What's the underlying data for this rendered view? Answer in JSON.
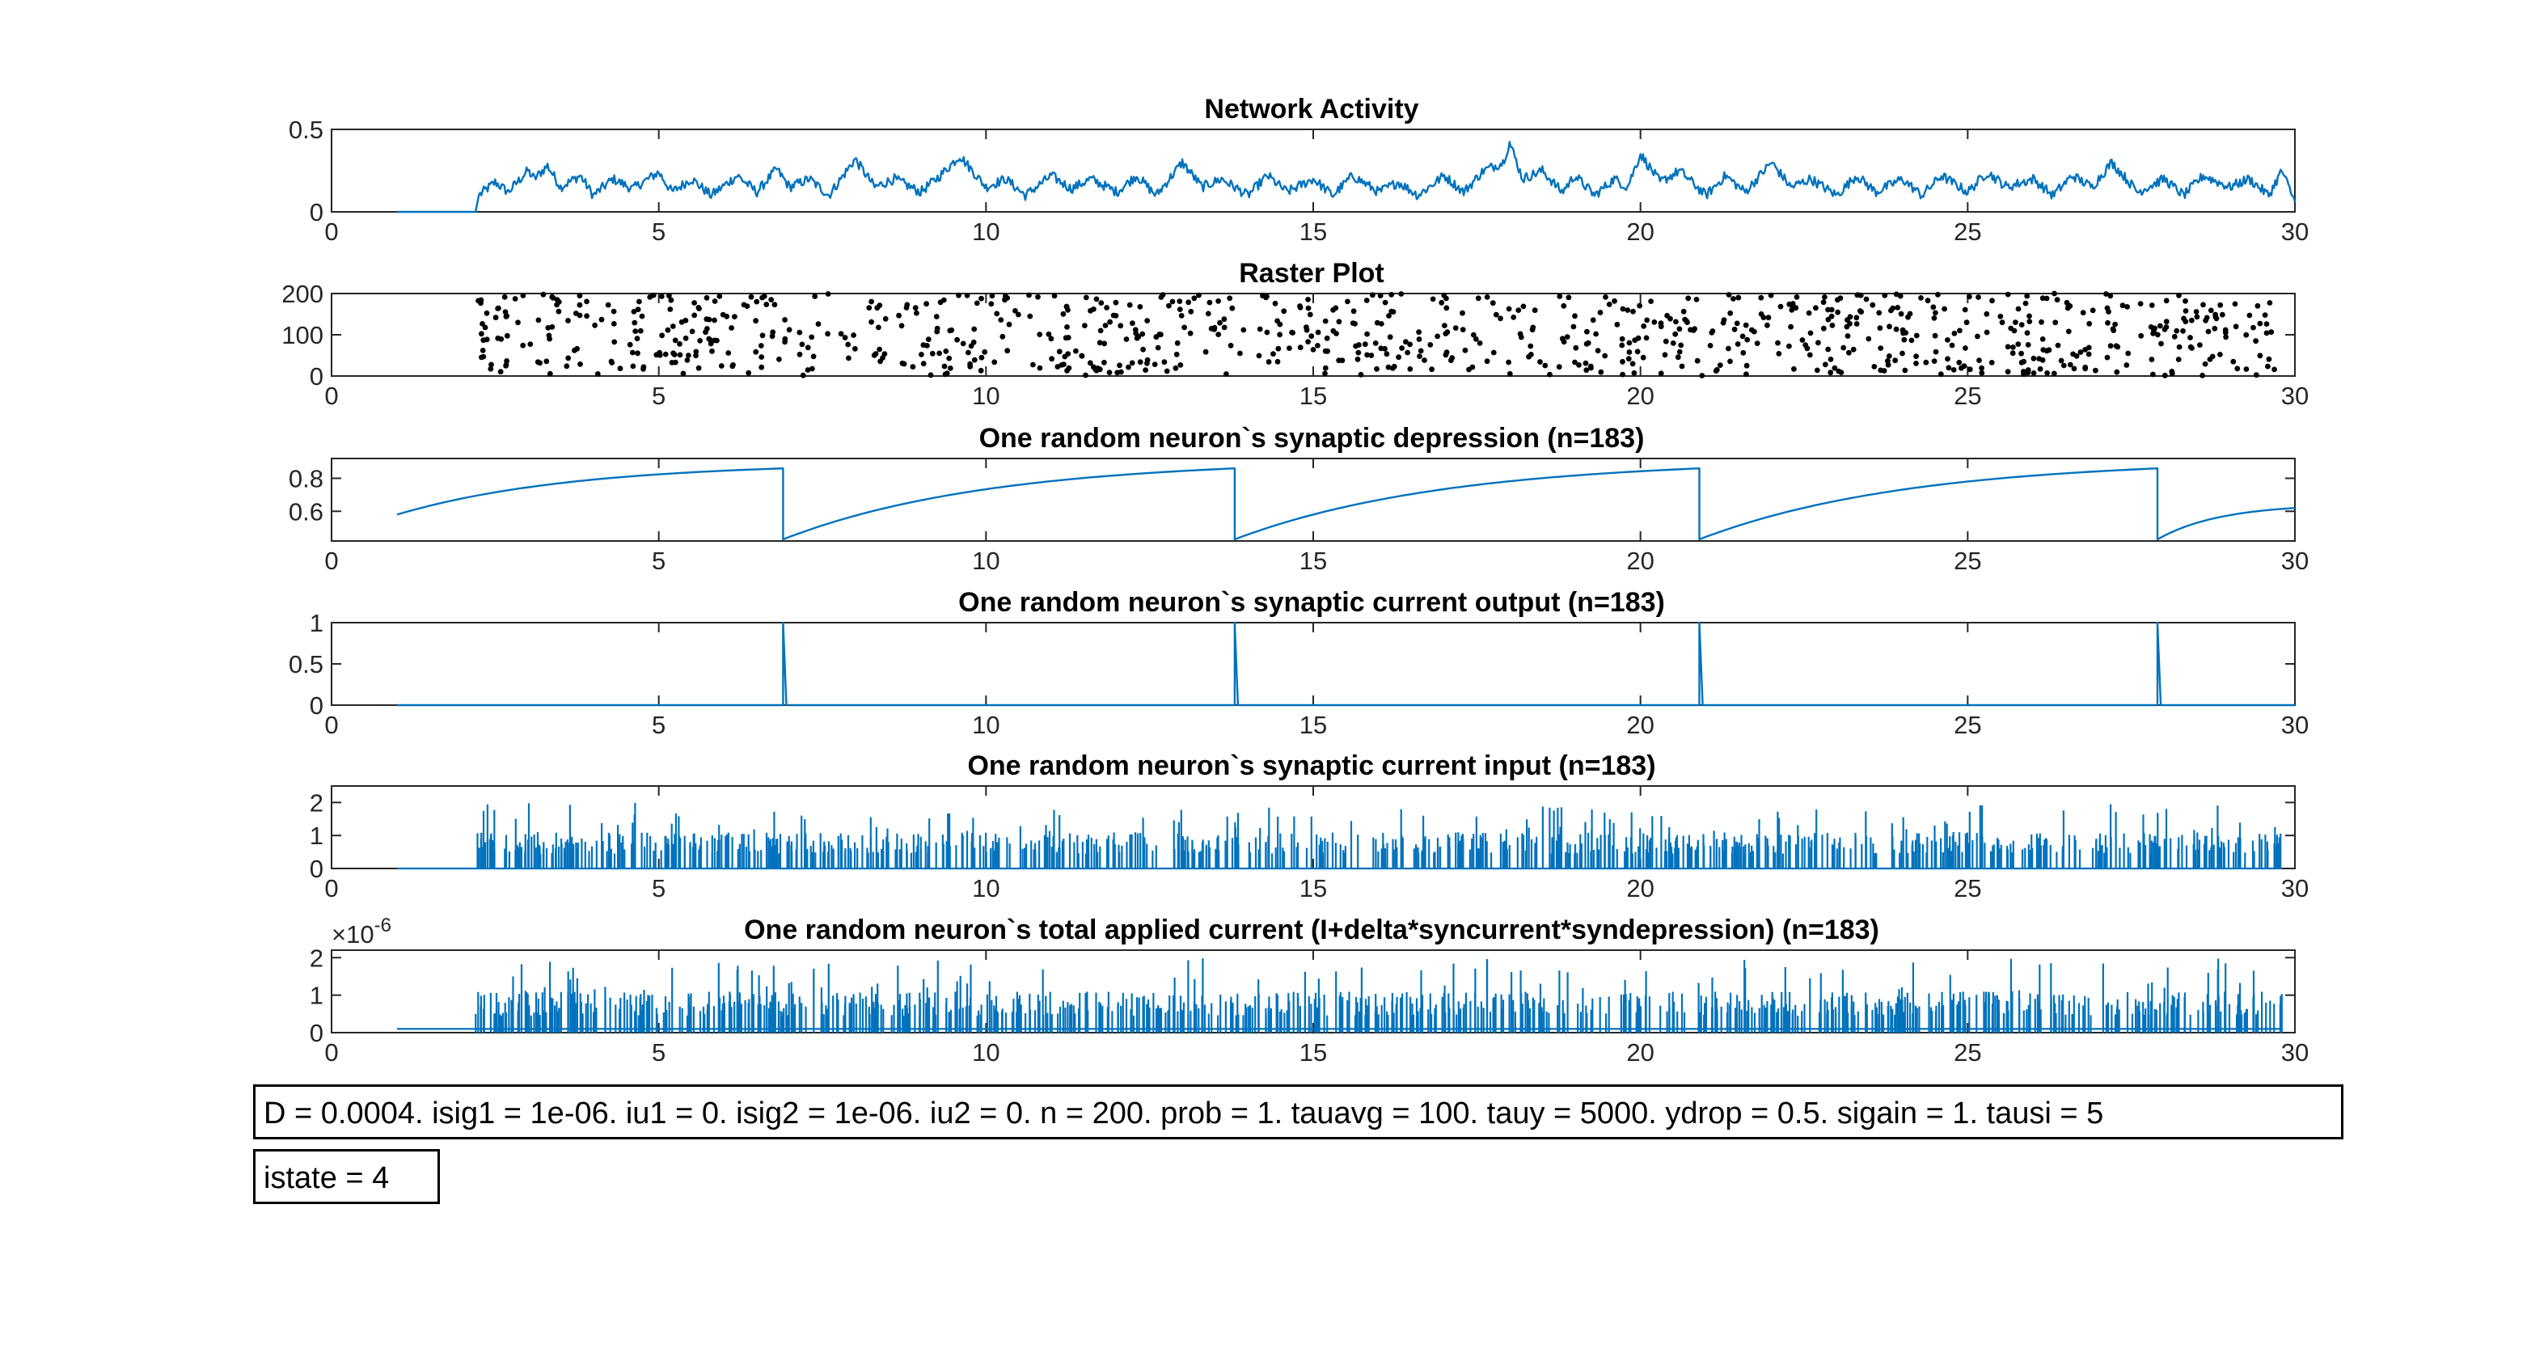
{
  "figure": {
    "params_text": "D = 0.0004. isig1 = 1e-06. iu1 = 0. isig2 = 1e-06. iu2 = 0. n = 200. prob = 1. tauavg = 100. tauy = 5000. ydrop = 0.5. sigain = 1. tausi = 5",
    "state_text": "istate = 4"
  },
  "colors": {
    "series": "#0072BD",
    "raster": "#000000",
    "axes": "#262626"
  },
  "chart_data": [
    {
      "type": "line",
      "title": "Network Activity",
      "xlabel": "",
      "ylabel": "",
      "xlim": [
        0,
        30
      ],
      "ylim": [
        0,
        0.5
      ],
      "xticks": [
        0,
        5,
        10,
        15,
        20,
        25,
        30
      ],
      "yticks": [
        0,
        0.5
      ],
      "ytick_labels": [
        "0",
        "0.5"
      ],
      "series": [
        {
          "x": [
            1.0,
            2.2,
            2.25,
            2.5,
            2.7,
            3.0,
            3.1,
            3.3,
            3.5,
            3.8,
            4.0,
            4.3,
            4.6,
            5.0,
            5.2,
            5.5,
            5.8,
            6.2,
            6.5,
            6.8,
            7.0,
            7.3,
            7.6,
            8.0,
            8.3,
            8.6,
            9.0,
            9.3,
            9.6,
            10.0,
            10.3,
            10.6,
            11.0,
            11.3,
            11.6,
            12.0,
            12.3,
            12.6,
            13.0,
            13.3,
            13.6,
            14.0,
            14.3,
            14.6,
            15.0,
            15.3,
            15.6,
            16.0,
            16.3,
            16.6,
            17.0,
            17.3,
            17.6,
            17.9,
            18.0,
            18.2,
            18.5,
            18.8,
            19.0,
            19.3,
            19.6,
            19.8,
            20.0,
            20.3,
            20.6,
            21.0,
            21.3,
            21.6,
            22.0,
            22.3,
            22.6,
            23.0,
            23.3,
            23.6,
            24.0,
            24.3,
            24.6,
            25.0,
            25.3,
            25.6,
            26.0,
            26.3,
            26.6,
            26.9,
            27.2,
            27.6,
            28.0,
            28.3,
            28.6,
            29.0,
            29.3,
            29.6,
            29.8,
            30.0
          ],
          "y": [
            0.0,
            0.0,
            0.1,
            0.18,
            0.12,
            0.25,
            0.2,
            0.28,
            0.15,
            0.22,
            0.1,
            0.2,
            0.14,
            0.24,
            0.12,
            0.2,
            0.1,
            0.22,
            0.12,
            0.26,
            0.15,
            0.2,
            0.1,
            0.32,
            0.15,
            0.2,
            0.12,
            0.22,
            0.34,
            0.15,
            0.2,
            0.1,
            0.22,
            0.14,
            0.2,
            0.12,
            0.22,
            0.1,
            0.3,
            0.15,
            0.2,
            0.1,
            0.22,
            0.12,
            0.2,
            0.1,
            0.22,
            0.12,
            0.18,
            0.1,
            0.22,
            0.12,
            0.25,
            0.3,
            0.42,
            0.2,
            0.25,
            0.12,
            0.22,
            0.1,
            0.2,
            0.15,
            0.35,
            0.18,
            0.25,
            0.1,
            0.22,
            0.12,
            0.3,
            0.15,
            0.2,
            0.1,
            0.22,
            0.12,
            0.2,
            0.1,
            0.22,
            0.12,
            0.24,
            0.15,
            0.2,
            0.1,
            0.22,
            0.15,
            0.3,
            0.12,
            0.2,
            0.1,
            0.22,
            0.15,
            0.2,
            0.1,
            0.25,
            0.06
          ]
        }
      ]
    },
    {
      "type": "scatter",
      "title": "Raster Plot",
      "xlabel": "",
      "ylabel": "",
      "xlim": [
        0,
        30
      ],
      "ylim": [
        0,
        200
      ],
      "xticks": [
        0,
        5,
        10,
        15,
        20,
        25,
        30
      ],
      "yticks": [
        0,
        100,
        200
      ],
      "ytick_labels": [
        "0",
        "100",
        "200"
      ],
      "scatter_spec": {
        "x_start": 2.2,
        "x_end": 29.7,
        "approx_points": 900,
        "y_range": [
          1,
          200
        ]
      }
    },
    {
      "type": "line",
      "title": "One random neuron`s synaptic depression (n=183)",
      "xlabel": "",
      "ylabel": "",
      "xlim": [
        0,
        30
      ],
      "ylim": [
        0.42,
        0.92
      ],
      "xticks": [
        0,
        5,
        10,
        15,
        20,
        25,
        30
      ],
      "yticks": [
        0.6,
        0.8
      ],
      "ytick_labels": [
        "0.6",
        "0.8"
      ],
      "sawtooth": {
        "start_x": 1.0,
        "start_y": 0.58,
        "drop_times": [
          6.9,
          13.8,
          20.9,
          27.9
        ],
        "pre_drop_y": 0.86,
        "post_drop_y": 0.43,
        "end_x": 30.0,
        "end_y": 0.62
      }
    },
    {
      "type": "line",
      "title": "One random neuron`s synaptic current output (n=183)",
      "xlabel": "",
      "ylabel": "",
      "xlim": [
        0,
        30
      ],
      "ylim": [
        0,
        1
      ],
      "xticks": [
        0,
        5,
        10,
        15,
        20,
        25,
        30
      ],
      "yticks": [
        0,
        0.5,
        1
      ],
      "ytick_labels": [
        "0",
        "0.5",
        "1"
      ],
      "spikes": {
        "start_x": 1.0,
        "times": [
          6.9,
          13.8,
          20.9,
          27.9
        ],
        "height": 1.0,
        "baseline": 0.0
      }
    },
    {
      "type": "bar",
      "title": "One random neuron`s synaptic current input (n=183)",
      "xlabel": "",
      "ylabel": "",
      "xlim": [
        0,
        30
      ],
      "ylim": [
        0,
        2.5
      ],
      "xticks": [
        0,
        5,
        10,
        15,
        20,
        25,
        30
      ],
      "yticks": [
        0,
        1,
        2
      ],
      "ytick_labels": [
        "0",
        "1",
        "2"
      ],
      "stem_spec": {
        "x_start": 2.2,
        "x_end": 29.8,
        "baseline_start": 1.0,
        "approx_stems": 850,
        "typical_height": 1.0,
        "max_height": 2.5
      }
    },
    {
      "type": "bar",
      "title": "One random neuron`s total applied current (I+delta*syncurrent*syndepression) (n=183)",
      "xlabel": "",
      "ylabel": "",
      "xlim": [
        0,
        30
      ],
      "ylim": [
        0,
        2.2
      ],
      "xticks": [
        0,
        5,
        10,
        15,
        20,
        25,
        30
      ],
      "yticks": [
        0,
        1,
        2
      ],
      "ytick_labels": [
        "0",
        "1",
        "2"
      ],
      "exponent_label": "×10",
      "exponent_power": "-6",
      "stem_spec": {
        "x_start": 2.2,
        "x_end": 29.8,
        "baseline_start": 1.0,
        "baseline_level": 0.1,
        "approx_stems": 850,
        "typical_height": 1.0,
        "max_height": 2.1
      }
    }
  ]
}
